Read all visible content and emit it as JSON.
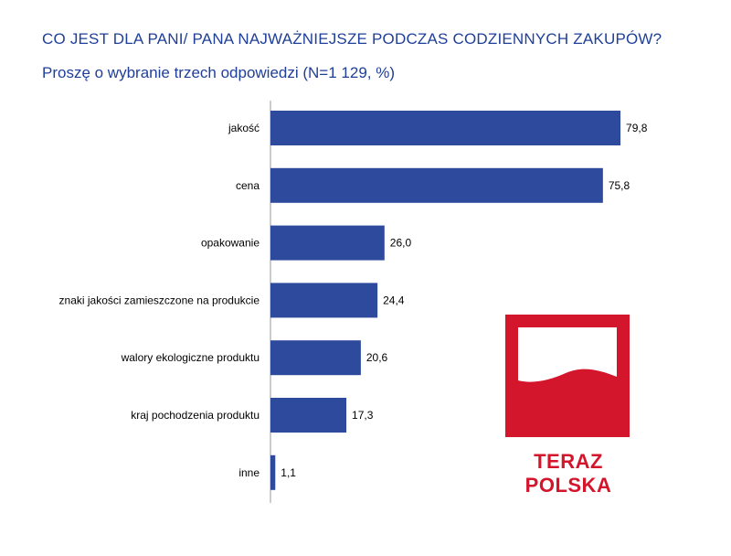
{
  "title": "CO JEST DLA PANI/ PANA NAJWAŻNIEJSZE PODCZAS CODZIENNYCH ZAKUPÓW?",
  "subtitle": "Proszę o wybranie trzech odpowiedzi (N=1 129, %)",
  "colors": {
    "bar": "#2e4a9c",
    "text": "#1f3f99",
    "logo_red": "#d4162c"
  },
  "logo": {
    "text": "TERAZ POLSKA",
    "icon": "teraz-polska-flag-logo"
  },
  "chart_data": {
    "type": "bar",
    "orientation": "horizontal",
    "categories": [
      "jakość",
      "cena",
      "opakowanie",
      "znaki jakości zamieszczone na produkcie",
      "walory ekologiczne produktu",
      "kraj pochodzenia produktu",
      "inne"
    ],
    "values": [
      79.8,
      75.8,
      26.0,
      24.4,
      20.6,
      17.3,
      1.1
    ],
    "value_labels": [
      "79,8",
      "75,8",
      "26,0",
      "24,4",
      "20,6",
      "17,3",
      "1,1"
    ],
    "title": "CO JEST DLA PANI/ PANA NAJWAŻNIEJSZE PODCZAS CODZIENNYCH ZAKUPÓW?",
    "xlabel": "",
    "ylabel": "",
    "xlim": [
      0,
      100
    ],
    "grid": false,
    "legend": "none"
  }
}
